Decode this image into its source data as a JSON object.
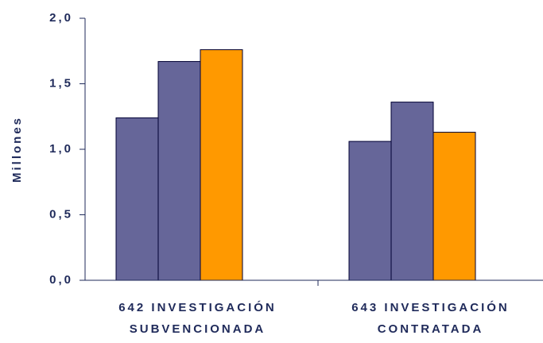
{
  "chart_data": {
    "type": "bar",
    "ylabel": "Millones",
    "categories": [
      [
        "642 INVESTIGACIÓN",
        "SUBVENCIONADA"
      ],
      [
        "643 INVESTIGACIÓN",
        "CONTRATADA"
      ]
    ],
    "series": [
      {
        "color": "#666699",
        "values": [
          1.24,
          1.06
        ]
      },
      {
        "color": "#666699",
        "values": [
          1.67,
          1.36
        ]
      },
      {
        "color": "#ff9900",
        "values": [
          1.76,
          1.13
        ]
      }
    ],
    "ylim": [
      0,
      2
    ],
    "yticks": [
      {
        "value": 0,
        "label": "0,0"
      },
      {
        "value": 0.5,
        "label": "0,5"
      },
      {
        "value": 1,
        "label": "1,0"
      },
      {
        "value": 1.5,
        "label": "1,5"
      },
      {
        "value": 2,
        "label": "2,0"
      }
    ],
    "grid": false
  }
}
